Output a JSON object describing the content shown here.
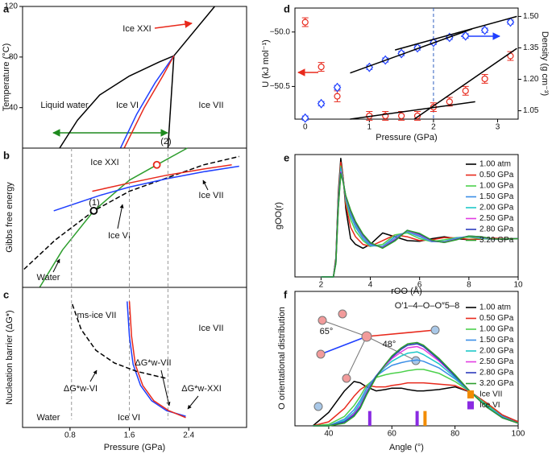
{
  "chart_data": [
    {
      "panel": "a",
      "type": "line",
      "xlim": [
        0.16,
        3.18
      ],
      "ylim": [
        8,
        120
      ],
      "yticks": [
        40,
        80,
        120
      ],
      "ylabel": "Temperature (°C)",
      "series": [
        {
          "color": "#000000",
          "x": [
            0.66,
            0.9,
            1.2,
            1.6,
            2.0,
            2.2
          ],
          "values": [
            8,
            30,
            50,
            65,
            76,
            81
          ]
        },
        {
          "color": "#000000",
          "x": [
            2.12,
            2.2
          ],
          "values": [
            8,
            81
          ]
        },
        {
          "color": "#000000",
          "x": [
            2.2,
            2.75
          ],
          "values": [
            81,
            120
          ]
        },
        {
          "color": "#1f3fff",
          "x": [
            1.48,
            1.7,
            1.95,
            2.2
          ],
          "values": [
            8,
            35,
            60,
            81
          ]
        },
        {
          "color": "#e8291c",
          "x": [
            1.53,
            1.8,
            2.05,
            2.2
          ],
          "values": [
            8,
            40,
            65,
            81
          ]
        }
      ],
      "annotations": [
        {
          "text": "Liquid water",
          "color": "#000000"
        },
        {
          "text": "Ice VI",
          "color": "#000000"
        },
        {
          "text": "Ice VII",
          "color": "#000000"
        },
        {
          "text": "Ice XXI",
          "color": "#e8291c"
        }
      ]
    },
    {
      "panel": "b",
      "type": "line",
      "xlim": [
        0.16,
        3.18
      ],
      "ylim": [
        0,
        10
      ],
      "ylabel": "Gibbs free energy",
      "series": [
        {
          "color": "#2e9e2e",
          "x": [
            0.39,
            0.7,
            1.12,
            1.6,
            1.97,
            2.38
          ],
          "values": [
            0,
            2.7,
            5.5,
            7.7,
            8.8,
            10
          ]
        },
        {
          "color": "#000000",
          "dash": true,
          "x": [
            0.18,
            0.6,
            1.12,
            1.6,
            2.1,
            2.6,
            3.08
          ],
          "values": [
            1.3,
            3.4,
            5.5,
            6.9,
            7.85,
            8.8,
            9.4
          ]
        },
        {
          "color": "#1f3fff",
          "x": [
            0.58,
            1.2,
            1.6,
            2.1,
            2.6,
            3.08
          ],
          "values": [
            5.5,
            6.6,
            7.2,
            7.8,
            8.3,
            8.7
          ]
        },
        {
          "color": "#e8291c",
          "x": [
            1.1,
            1.6,
            2.1,
            2.6,
            2.98
          ],
          "values": [
            6.9,
            7.5,
            8.05,
            8.5,
            8.8
          ]
        }
      ],
      "markers": [
        {
          "x": 1.12,
          "y": 5.5,
          "color": "#000000"
        },
        {
          "x": 1.97,
          "y": 8.8,
          "color": "#e8291c"
        }
      ],
      "annotations": [
        {
          "text": "Ice XXI",
          "color": "#e8291c"
        },
        {
          "text": "(2)",
          "color": "#000000"
        },
        {
          "text": "Ice VII",
          "color": "#1f3fff"
        },
        {
          "text": "(1)",
          "color": "#000000"
        },
        {
          "text": "Ice VI",
          "color": "#000000"
        },
        {
          "text": "Water",
          "color": "#000000"
        }
      ]
    },
    {
      "panel": "c",
      "type": "line",
      "xlim": [
        0.16,
        3.18
      ],
      "ylim": [
        0,
        10
      ],
      "xticks": [
        0.8,
        1.6,
        2.4
      ],
      "xlabel": "Pressure (GPa)",
      "ylabel": "Nucleation barrier (ΔG*)",
      "reference_x": [
        0.82,
        1.6,
        2.12
      ],
      "series": [
        {
          "color": "#1f3fff",
          "x": [
            1.57,
            1.6,
            1.65,
            1.75,
            1.9,
            2.1,
            2.36
          ],
          "values": [
            9.0,
            6.5,
            4.5,
            3.0,
            1.9,
            1.2,
            0.8
          ]
        },
        {
          "color": "#e8291c",
          "x": [
            1.6,
            1.63,
            1.68,
            1.78,
            1.93,
            2.13,
            2.36
          ],
          "values": [
            9.0,
            6.5,
            4.5,
            3.0,
            1.9,
            1.2,
            0.7
          ]
        },
        {
          "color": "#000000",
          "dash": true,
          "x": [
            0.83,
            0.95,
            1.15,
            1.4,
            1.7,
            2.1
          ],
          "values": [
            8.8,
            7.0,
            5.5,
            4.6,
            4.0,
            3.5
          ]
        }
      ],
      "annotations": [
        {
          "text": "ms-ice VII",
          "color": "#1f3fff"
        },
        {
          "text": "Ice VII",
          "color": "#000000"
        },
        {
          "text": "ΔG*w-VI",
          "color": "#000000"
        },
        {
          "text": "ΔG*w-VII",
          "color": "#1f3fff"
        },
        {
          "text": "ΔG*w-XXI",
          "color": "#e8291c"
        },
        {
          "text": "Water",
          "color": "#000000"
        },
        {
          "text": "Ice VI",
          "color": "#000000"
        }
      ]
    },
    {
      "panel": "d",
      "type": "scatter",
      "xlim": [
        -0.16,
        3.32
      ],
      "ylim": [
        -50.8,
        -49.78
      ],
      "y2lim": [
        1.01,
        1.54
      ],
      "xticks": [
        0,
        1,
        2,
        3
      ],
      "yticks": [
        {
          "value": -50,
          "label": "−50.0"
        },
        {
          "value": -50.5,
          "label": "−50.5"
        }
      ],
      "y2ticks": [
        1.05,
        {
          "value": 1.2,
          "label": "1.20"
        },
        1.35,
        {
          "value": 1.5,
          "label": "1.50"
        }
      ],
      "xlabel": "Pressure (GPa)",
      "ylabel": "U (kJ mol⁻¹)",
      "y2label": "Density (g cm⁻³)",
      "ylabel_color": "#e8291c",
      "y2label_color": "#1f3fff",
      "reference_x": [
        2
      ],
      "series": [
        {
          "mode": "markers",
          "marker": "circle",
          "color": "#e8291c",
          "x": [
            0,
            0.25,
            0.5,
            1,
            1.25,
            1.5,
            1.75,
            2,
            2.25,
            2.5,
            2.8,
            3.2
          ],
          "values": [
            -49.91,
            -50.32,
            -50.59,
            -50.77,
            -50.77,
            -50.77,
            -50.77,
            -50.69,
            -50.64,
            -50.54,
            -50.43,
            -50.22
          ],
          "errors": [
            0.04,
            0.04,
            0.05,
            0.04,
            0.04,
            0.04,
            0.04,
            0.04,
            0.04,
            0.04,
            0.04,
            0.04
          ]
        },
        {
          "mode": "markers",
          "marker": "diamond",
          "axis": "y2",
          "color": "#1f3fff",
          "x": [
            0,
            0.25,
            0.5,
            1,
            1.25,
            1.5,
            1.75,
            2,
            2.25,
            2.5,
            2.8,
            3.2
          ],
          "values": [
            1.015,
            1.084,
            1.161,
            1.257,
            1.292,
            1.323,
            1.35,
            1.376,
            1.4,
            1.407,
            1.434,
            1.473
          ],
          "errors": [
            0.01,
            0.01,
            0.01,
            0.01,
            0.01,
            0.01,
            0.01,
            0.01,
            0.01,
            0.01,
            0.01,
            0.01
          ]
        },
        {
          "color": "#000000",
          "x": [
            0.7,
            2.65
          ],
          "values": [
            -50.8,
            -50.64
          ]
        },
        {
          "color": "#000000",
          "x": [
            1.7,
            3.3
          ],
          "values": [
            -50.8,
            -50.15
          ]
        },
        {
          "color": "#000000",
          "axis": "y2",
          "x": [
            0.7,
            2.6
          ],
          "values": [
            1.23,
            1.44
          ]
        },
        {
          "color": "#000000",
          "axis": "y2",
          "x": [
            1.4,
            3.3
          ],
          "values": [
            1.34,
            1.5
          ]
        }
      ]
    },
    {
      "panel": "e",
      "type": "line",
      "xlim": [
        0.94,
        10
      ],
      "ylim": [
        0,
        3.2
      ],
      "xticks": [
        2,
        4,
        6,
        8,
        10
      ],
      "xlabel": "rOO (Å)",
      "ylabel": "gOO(r)",
      "legend": true,
      "x": [
        2.0,
        2.5,
        2.6,
        2.7,
        2.8,
        2.9,
        3.0,
        3.2,
        3.4,
        3.7,
        4.0,
        4.5,
        5.0,
        5.5,
        6.0,
        6.5,
        7.0,
        7.5,
        8.0,
        8.5,
        9.0,
        9.5,
        10
      ],
      "series": [
        {
          "name": "1.00 atm",
          "color": "#000000",
          "values": [
            0,
            0,
            0.5,
            2.2,
            3.1,
            2.6,
            1.8,
            1.0,
            0.85,
            0.75,
            0.85,
            1.15,
            1.05,
            0.95,
            0.93,
            1.0,
            1.05,
            1.0,
            0.97,
            0.99,
            1.01,
            1.0,
            1.0
          ]
        },
        {
          "name": "0.50 GPa",
          "color": "#e8291c",
          "values": [
            0,
            0,
            0.45,
            2.1,
            3.0,
            2.6,
            1.9,
            1.3,
            1.05,
            0.85,
            0.8,
            0.95,
            1.1,
            1.05,
            0.95,
            0.97,
            1.03,
            1.02,
            0.98,
            0.99,
            1.01,
            1.0,
            1.0
          ]
        },
        {
          "name": "1.00 GPa",
          "color": "#4cd14c",
          "values": [
            0,
            0,
            0.4,
            2.0,
            2.9,
            2.55,
            2.0,
            1.5,
            1.2,
            0.95,
            0.8,
            0.85,
            1.1,
            1.15,
            1.0,
            0.92,
            0.97,
            1.03,
            1.04,
            1.0,
            0.98,
            1.0,
            1.0
          ]
        },
        {
          "name": "1.50 GPa",
          "color": "#3a8ee6",
          "values": [
            0,
            0,
            0.4,
            1.95,
            2.85,
            2.5,
            2.05,
            1.6,
            1.3,
            1.0,
            0.82,
            0.8,
            1.05,
            1.18,
            1.05,
            0.92,
            0.93,
            1.02,
            1.06,
            1.02,
            0.98,
            0.99,
            1.0
          ]
        },
        {
          "name": "2.00 GPa",
          "color": "#1ec8c8",
          "values": [
            0,
            0,
            0.38,
            1.9,
            2.8,
            2.5,
            2.1,
            1.65,
            1.35,
            1.05,
            0.85,
            0.78,
            1.0,
            1.2,
            1.08,
            0.93,
            0.92,
            1.0,
            1.07,
            1.03,
            0.98,
            0.99,
            1.0
          ]
        },
        {
          "name": "2.50 GPa",
          "color": "#e23ce2",
          "values": [
            0,
            0,
            0.37,
            1.85,
            2.75,
            2.5,
            2.1,
            1.7,
            1.4,
            1.08,
            0.87,
            0.77,
            0.98,
            1.21,
            1.1,
            0.94,
            0.91,
            0.99,
            1.07,
            1.04,
            0.98,
            0.99,
            1.0
          ]
        },
        {
          "name": "2.80 GPa",
          "color": "#2b3bbd",
          "values": [
            0,
            0,
            0.36,
            1.82,
            2.72,
            2.48,
            2.12,
            1.72,
            1.42,
            1.1,
            0.88,
            0.76,
            0.96,
            1.22,
            1.12,
            0.95,
            0.9,
            0.98,
            1.07,
            1.05,
            0.99,
            0.99,
            1.0
          ]
        },
        {
          "name": "3.20 GPa",
          "color": "#2e9e2e",
          "values": [
            0,
            0,
            0.35,
            1.8,
            2.7,
            2.47,
            2.13,
            1.75,
            1.45,
            1.12,
            0.9,
            0.75,
            0.94,
            1.22,
            1.14,
            0.96,
            0.9,
            0.97,
            1.07,
            1.05,
            0.99,
            0.99,
            1.0
          ]
        }
      ]
    },
    {
      "panel": "f",
      "type": "line",
      "xlim": [
        29.3,
        100
      ],
      "ylim": [
        0,
        1
      ],
      "xticks": [
        40,
        60,
        80,
        100
      ],
      "xlabel": "Angle (°)",
      "ylabel": "O orientational distribution",
      "legend": true,
      "x": [
        35,
        40,
        45,
        48,
        50,
        52,
        55,
        58,
        60,
        63,
        65,
        68,
        70,
        75,
        80,
        85,
        90,
        95,
        100
      ],
      "series": [
        {
          "name": "1.00 atm",
          "color": "#000000",
          "values": [
            0.0,
            0.1,
            0.26,
            0.33,
            0.32,
            0.29,
            0.26,
            0.27,
            0.28,
            0.28,
            0.27,
            0.26,
            0.26,
            0.27,
            0.29,
            0.25,
            0.17,
            0.08,
            0.03
          ]
        },
        {
          "name": "0.50 GPa",
          "color": "#e8291c",
          "values": [
            0,
            0.03,
            0.13,
            0.22,
            0.27,
            0.3,
            0.29,
            0.29,
            0.3,
            0.31,
            0.32,
            0.32,
            0.32,
            0.31,
            0.3,
            0.25,
            0.17,
            0.08,
            0.03
          ]
        },
        {
          "name": "1.00 GPa",
          "color": "#4cd14c",
          "values": [
            0,
            0.01,
            0.07,
            0.15,
            0.22,
            0.3,
            0.36,
            0.38,
            0.39,
            0.4,
            0.41,
            0.42,
            0.42,
            0.39,
            0.33,
            0.25,
            0.16,
            0.07,
            0.02
          ]
        },
        {
          "name": "1.50 GPa",
          "color": "#3a8ee6",
          "values": [
            0,
            0,
            0.05,
            0.12,
            0.19,
            0.28,
            0.37,
            0.42,
            0.45,
            0.47,
            0.48,
            0.49,
            0.48,
            0.43,
            0.35,
            0.25,
            0.15,
            0.07,
            0.02
          ]
        },
        {
          "name": "2.00 GPa",
          "color": "#1ec8c8",
          "values": [
            0,
            0,
            0.04,
            0.1,
            0.17,
            0.26,
            0.37,
            0.44,
            0.48,
            0.52,
            0.54,
            0.55,
            0.53,
            0.46,
            0.36,
            0.25,
            0.15,
            0.06,
            0.02
          ]
        },
        {
          "name": "2.50 GPa",
          "color": "#e23ce2",
          "values": [
            0,
            0,
            0.03,
            0.09,
            0.15,
            0.25,
            0.37,
            0.45,
            0.5,
            0.55,
            0.58,
            0.59,
            0.57,
            0.48,
            0.37,
            0.25,
            0.14,
            0.06,
            0.02
          ]
        },
        {
          "name": "2.80 GPa",
          "color": "#2b3bbd",
          "values": [
            0,
            0,
            0.03,
            0.08,
            0.14,
            0.24,
            0.37,
            0.46,
            0.51,
            0.57,
            0.6,
            0.61,
            0.59,
            0.49,
            0.37,
            0.25,
            0.14,
            0.06,
            0.02
          ]
        },
        {
          "name": "3.20 GPa",
          "color": "#2e9e2e",
          "values": [
            0,
            0,
            0.02,
            0.07,
            0.13,
            0.23,
            0.36,
            0.46,
            0.52,
            0.58,
            0.61,
            0.62,
            0.6,
            0.5,
            0.38,
            0.25,
            0.14,
            0.06,
            0.02
          ]
        },
        {
          "name": "Ice VII",
          "mode": "bar",
          "color": "#f28c00",
          "x": [
            70.5
          ],
          "values": [
            0.11
          ]
        },
        {
          "name": "Ice VI",
          "mode": "bar",
          "color": "#8a2be2",
          "x": [
            53,
            68
          ],
          "values": [
            0.11,
            0.11
          ]
        }
      ],
      "annotations": [
        {
          "text": "O′1–4–O–O″5–8",
          "color": "#000000"
        },
        {
          "text": "65°",
          "color": "#1f3fff"
        },
        {
          "text": "48°",
          "color": "#e8291c"
        }
      ]
    }
  ]
}
